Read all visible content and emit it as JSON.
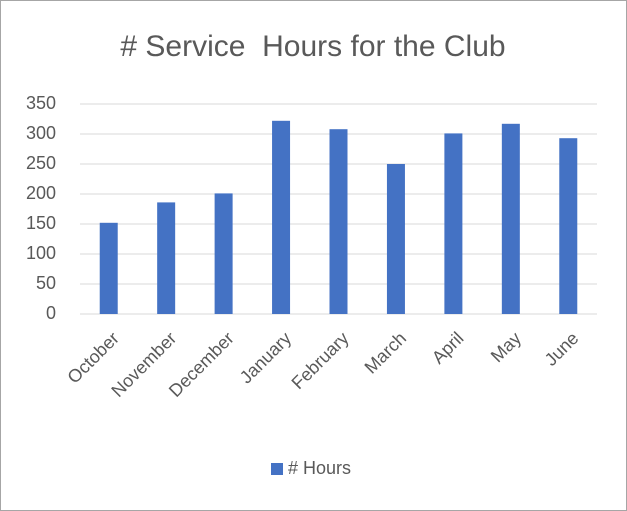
{
  "chart_data": {
    "type": "bar",
    "title": "# Service  Hours for the Club",
    "categories": [
      "October",
      "November",
      "December",
      "January",
      "February",
      "March",
      "April",
      "May",
      "June"
    ],
    "series": [
      {
        "name": "# Hours",
        "color": "#4472c4",
        "values": [
          152,
          186,
          201,
          322,
          308,
          250,
          301,
          317,
          293
        ]
      }
    ],
    "ylim": [
      0,
      350
    ],
    "yticks": [
      0,
      50,
      100,
      150,
      200,
      250,
      300,
      350
    ],
    "grid": true,
    "legend": "bottom"
  }
}
